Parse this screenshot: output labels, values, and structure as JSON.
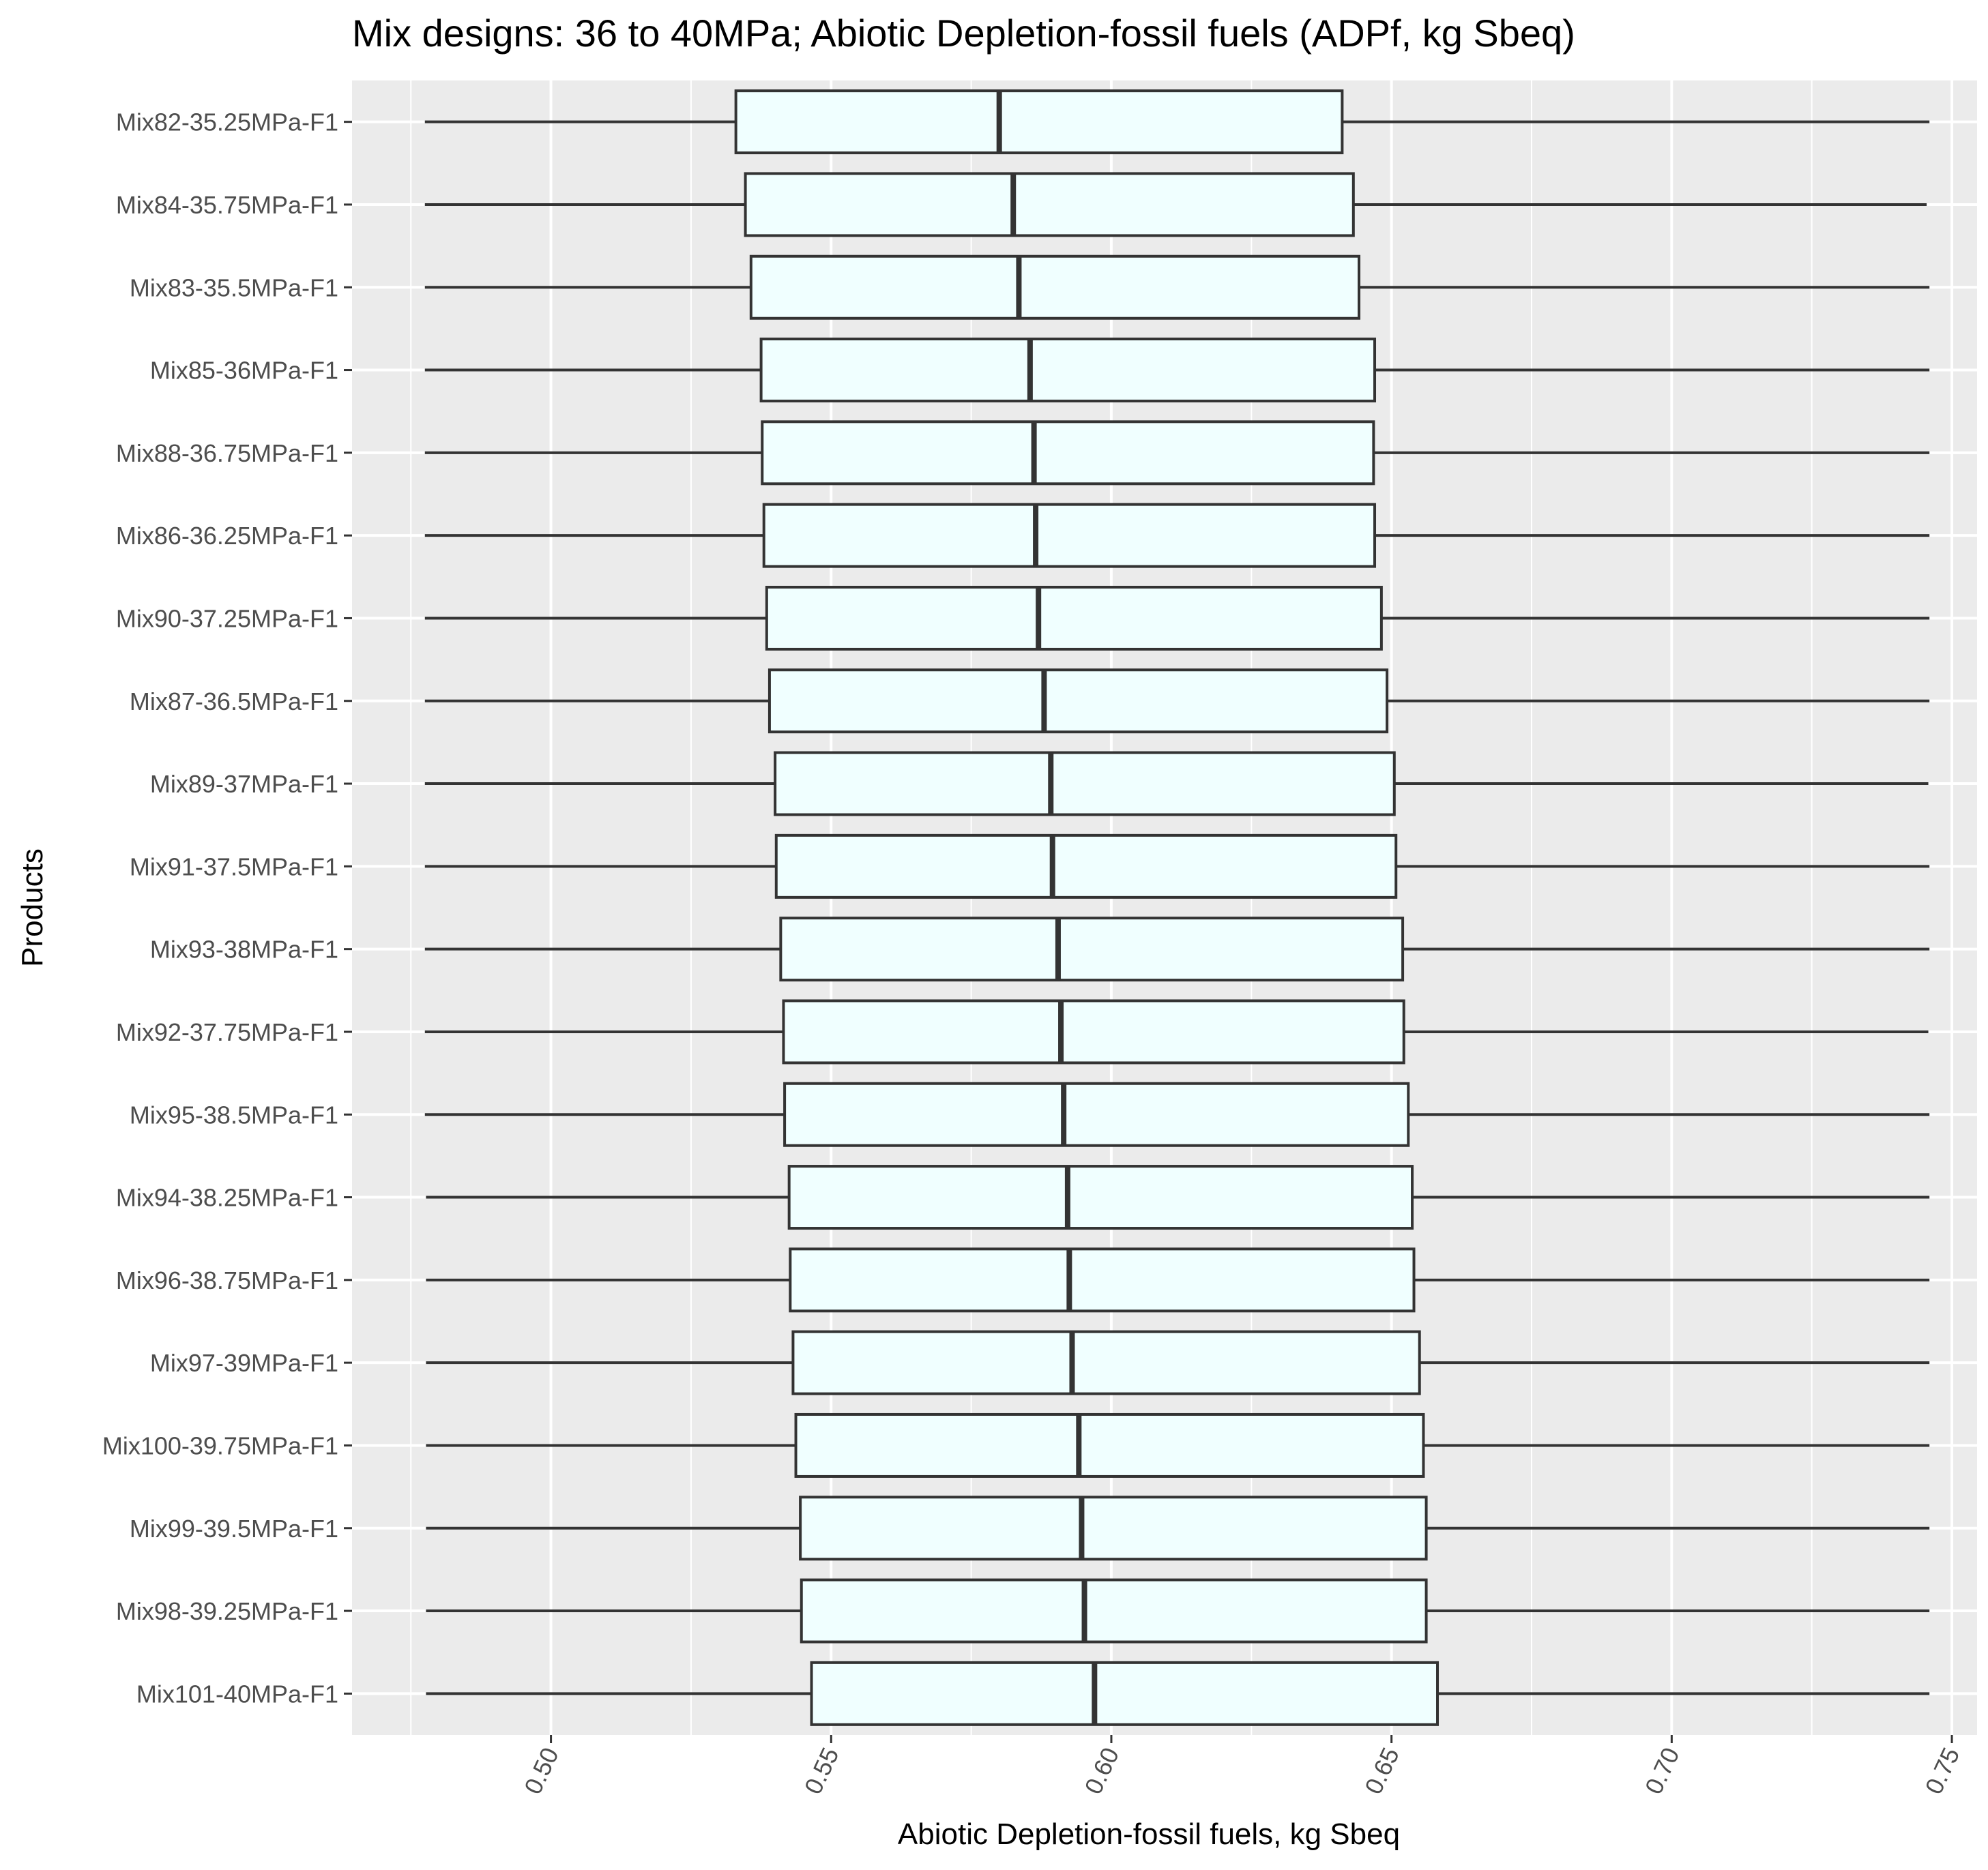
{
  "chart_data": {
    "type": "boxplot",
    "orientation": "horizontal",
    "title": "Mix designs: 36 to 40MPa; Abiotic Depletion-fossil fuels (ADPf, kg Sbeq)",
    "xlabel": "Abiotic Depletion-fossil fuels, kg Sbeq",
    "ylabel": "Products",
    "xlim": [
      0.4645,
      0.7545
    ],
    "x_ticks": [
      0.5,
      0.55,
      0.6,
      0.65,
      0.7,
      0.75
    ],
    "x_tick_labels": [
      "0.50",
      "0.55",
      "0.60",
      "0.65",
      "0.70",
      "0.75"
    ],
    "x_tick_rotation": -65,
    "grid": true,
    "colors": {
      "panel": "#ebebeb",
      "grid": "#ffffff",
      "box_fill": "#f0ffff",
      "box_line": "#333333",
      "text": "#000000",
      "tick_text": "#4d4d4d"
    },
    "categories": [
      "Mix82-35.25MPa-F1",
      "Mix84-35.75MPa-F1",
      "Mix83-35.5MPa-F1",
      "Mix85-36MPa-F1",
      "Mix88-36.75MPa-F1",
      "Mix86-36.25MPa-F1",
      "Mix90-37.25MPa-F1",
      "Mix87-36.5MPa-F1",
      "Mix89-37MPa-F1",
      "Mix91-37.5MPa-F1",
      "Mix93-38MPa-F1",
      "Mix92-37.75MPa-F1",
      "Mix95-38.5MPa-F1",
      "Mix94-38.25MPa-F1",
      "Mix96-38.75MPa-F1",
      "Mix97-39MPa-F1",
      "Mix100-39.75MPa-F1",
      "Mix99-39.5MPa-F1",
      "Mix98-39.25MPa-F1",
      "Mix101-40MPa-F1"
    ],
    "boxes": [
      {
        "min": 0.4775,
        "q1": 0.533,
        "median": 0.58,
        "q3": 0.6412,
        "max": 0.746
      },
      {
        "min": 0.4775,
        "q1": 0.5347,
        "median": 0.5825,
        "q3": 0.6432,
        "max": 0.7455
      },
      {
        "min": 0.4775,
        "q1": 0.5357,
        "median": 0.5835,
        "q3": 0.6442,
        "max": 0.746
      },
      {
        "min": 0.4775,
        "q1": 0.5375,
        "median": 0.5855,
        "q3": 0.647,
        "max": 0.746
      },
      {
        "min": 0.4775,
        "q1": 0.5377,
        "median": 0.5862,
        "q3": 0.6468,
        "max": 0.746
      },
      {
        "min": 0.4775,
        "q1": 0.538,
        "median": 0.5865,
        "q3": 0.647,
        "max": 0.746
      },
      {
        "min": 0.4775,
        "q1": 0.5385,
        "median": 0.587,
        "q3": 0.6482,
        "max": 0.746
      },
      {
        "min": 0.4775,
        "q1": 0.539,
        "median": 0.588,
        "q3": 0.6492,
        "max": 0.746
      },
      {
        "min": 0.4775,
        "q1": 0.54,
        "median": 0.5892,
        "q3": 0.6505,
        "max": 0.7458
      },
      {
        "min": 0.4775,
        "q1": 0.5402,
        "median": 0.5895,
        "q3": 0.6508,
        "max": 0.746
      },
      {
        "min": 0.4775,
        "q1": 0.541,
        "median": 0.5905,
        "q3": 0.652,
        "max": 0.746
      },
      {
        "min": 0.4775,
        "q1": 0.5415,
        "median": 0.591,
        "q3": 0.6522,
        "max": 0.7458
      },
      {
        "min": 0.4775,
        "q1": 0.5417,
        "median": 0.5915,
        "q3": 0.653,
        "max": 0.746
      },
      {
        "min": 0.4777,
        "q1": 0.5425,
        "median": 0.5922,
        "q3": 0.6537,
        "max": 0.746
      },
      {
        "min": 0.4777,
        "q1": 0.5427,
        "median": 0.5925,
        "q3": 0.654,
        "max": 0.746
      },
      {
        "min": 0.4777,
        "q1": 0.5432,
        "median": 0.593,
        "q3": 0.655,
        "max": 0.746
      },
      {
        "min": 0.4777,
        "q1": 0.5437,
        "median": 0.5942,
        "q3": 0.6557,
        "max": 0.746
      },
      {
        "min": 0.4777,
        "q1": 0.5445,
        "median": 0.5947,
        "q3": 0.6562,
        "max": 0.746
      },
      {
        "min": 0.4777,
        "q1": 0.5447,
        "median": 0.5952,
        "q3": 0.6562,
        "max": 0.746
      },
      {
        "min": 0.4777,
        "q1": 0.5465,
        "median": 0.597,
        "q3": 0.6582,
        "max": 0.746
      }
    ]
  }
}
